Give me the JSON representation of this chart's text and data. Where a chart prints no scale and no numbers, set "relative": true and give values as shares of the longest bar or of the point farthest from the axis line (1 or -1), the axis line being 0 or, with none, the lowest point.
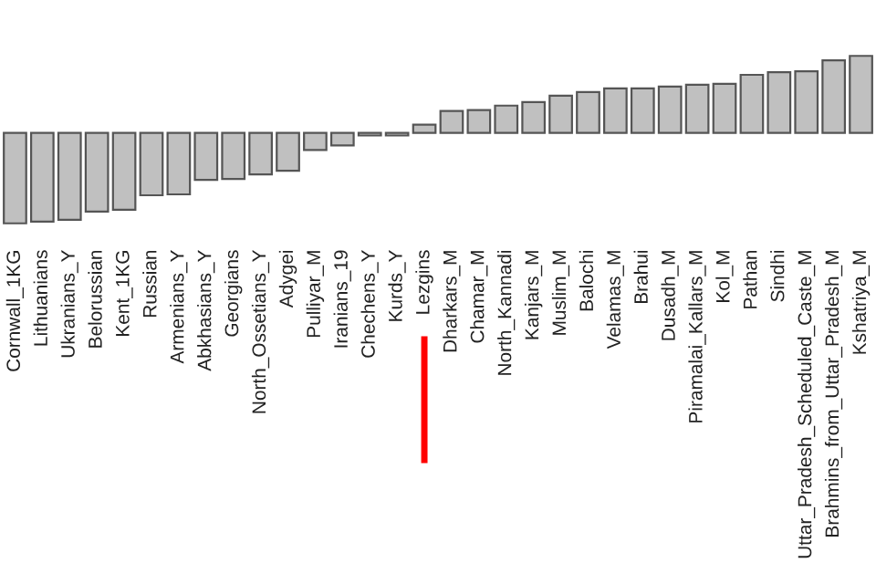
{
  "chart_data": {
    "type": "bar",
    "relative": true,
    "color": "#c0c0c0",
    "categories": [
      "Cornwall_1KG",
      "Lithuanians",
      "Ukranians_Y",
      "Belorussian",
      "Kent_1KG",
      "Russian",
      "Armenians_Y",
      "Abkhasians_Y",
      "Georgians",
      "North_Ossetians_Y",
      "Adygei",
      "Pulliyar_M",
      "Iranians_19",
      "Chechens_Y",
      "Kurds_Y",
      "Lezgins",
      "Dharkars_M",
      "Chamar_M",
      "North_Kannadi",
      "Kanjars_M",
      "Muslim_M",
      "Balochi",
      "Velamas_M",
      "Brahui",
      "Dusadh_M",
      "Piramalai_Kallars_M",
      "Kol_M",
      "Pathan",
      "Sindhi",
      "Uttar_Pradesh_Scheduled_Caste_M",
      "Brahmins_from_Uttar_Pradesh_M",
      "Kshatriya_M"
    ],
    "values": [
      -1,
      -0.98,
      -0.96,
      -0.87,
      -0.85,
      -0.69,
      -0.68,
      -0.52,
      -0.51,
      -0.46,
      -0.42,
      -0.19,
      -0.14,
      -0.03,
      -0.03,
      0.09,
      0.24,
      0.25,
      0.3,
      0.34,
      0.41,
      0.45,
      0.49,
      0.49,
      0.51,
      0.53,
      0.54,
      0.64,
      0.67,
      0.68,
      0.8,
      0.85
    ]
  }
}
